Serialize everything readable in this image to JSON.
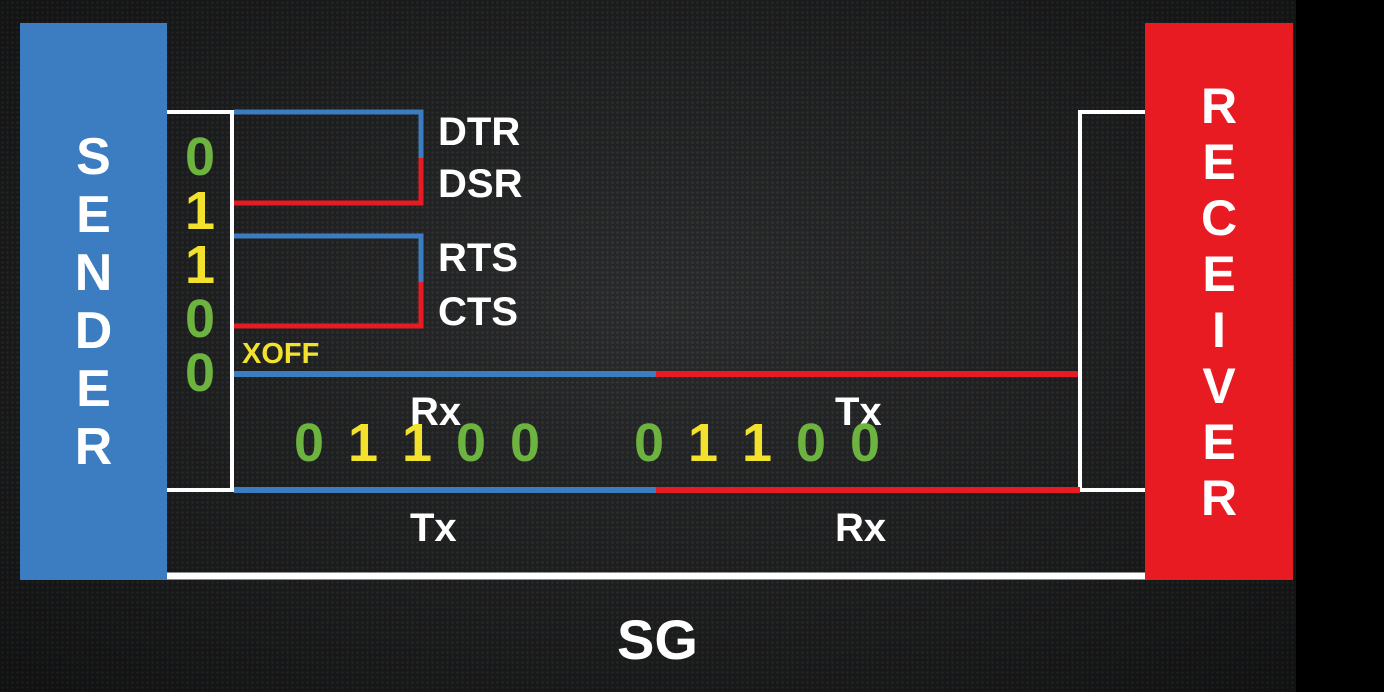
{
  "sender": {
    "letters": [
      "S",
      "E",
      "N",
      "D",
      "E",
      "R"
    ],
    "color": "#3b7dc0"
  },
  "receiver": {
    "letters": [
      "R",
      "E",
      "C",
      "E",
      "I",
      "V",
      "E",
      "R"
    ],
    "color": "#e81a22"
  },
  "signals": {
    "dtr": "DTR",
    "dsr": "DSR",
    "rts": "RTS",
    "cts": "CTS"
  },
  "xoff": "XOFF",
  "sender_bits": [
    "0",
    "1",
    "1",
    "0",
    "0"
  ],
  "stream_left": [
    "0",
    "1",
    "1",
    "0",
    "0"
  ],
  "stream_right": [
    "0",
    "1",
    "1",
    "0",
    "0"
  ],
  "line_labels": {
    "rx_left": "Rx",
    "tx_right": "Tx",
    "tx_left": "Tx",
    "rx_right": "Rx"
  },
  "ground": "SG",
  "colors": {
    "one": "#f2e22e",
    "zero": "#6db33f",
    "sender_wire": "#3b7dc0",
    "receiver_wire": "#e81a22",
    "frame": "#ffffff"
  }
}
